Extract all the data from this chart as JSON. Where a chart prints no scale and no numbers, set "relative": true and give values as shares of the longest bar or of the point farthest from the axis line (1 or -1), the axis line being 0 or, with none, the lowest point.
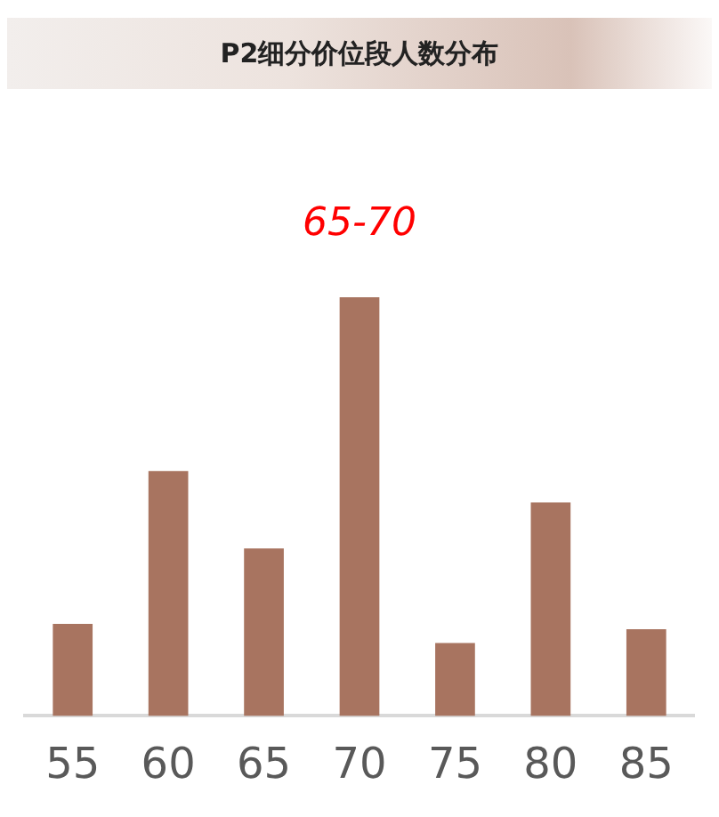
{
  "chart_data": {
    "type": "bar",
    "title": "P2细分价位段人数分布",
    "relative": true,
    "categories": [
      "55",
      "60",
      "65",
      "70",
      "75",
      "80",
      "85"
    ],
    "values": [
      0.22,
      0.585,
      0.4,
      1,
      0.174,
      0.51,
      0.207
    ],
    "color": "#a87460",
    "annotations": [
      "65-70"
    ],
    "grid": false,
    "legend": false
  }
}
